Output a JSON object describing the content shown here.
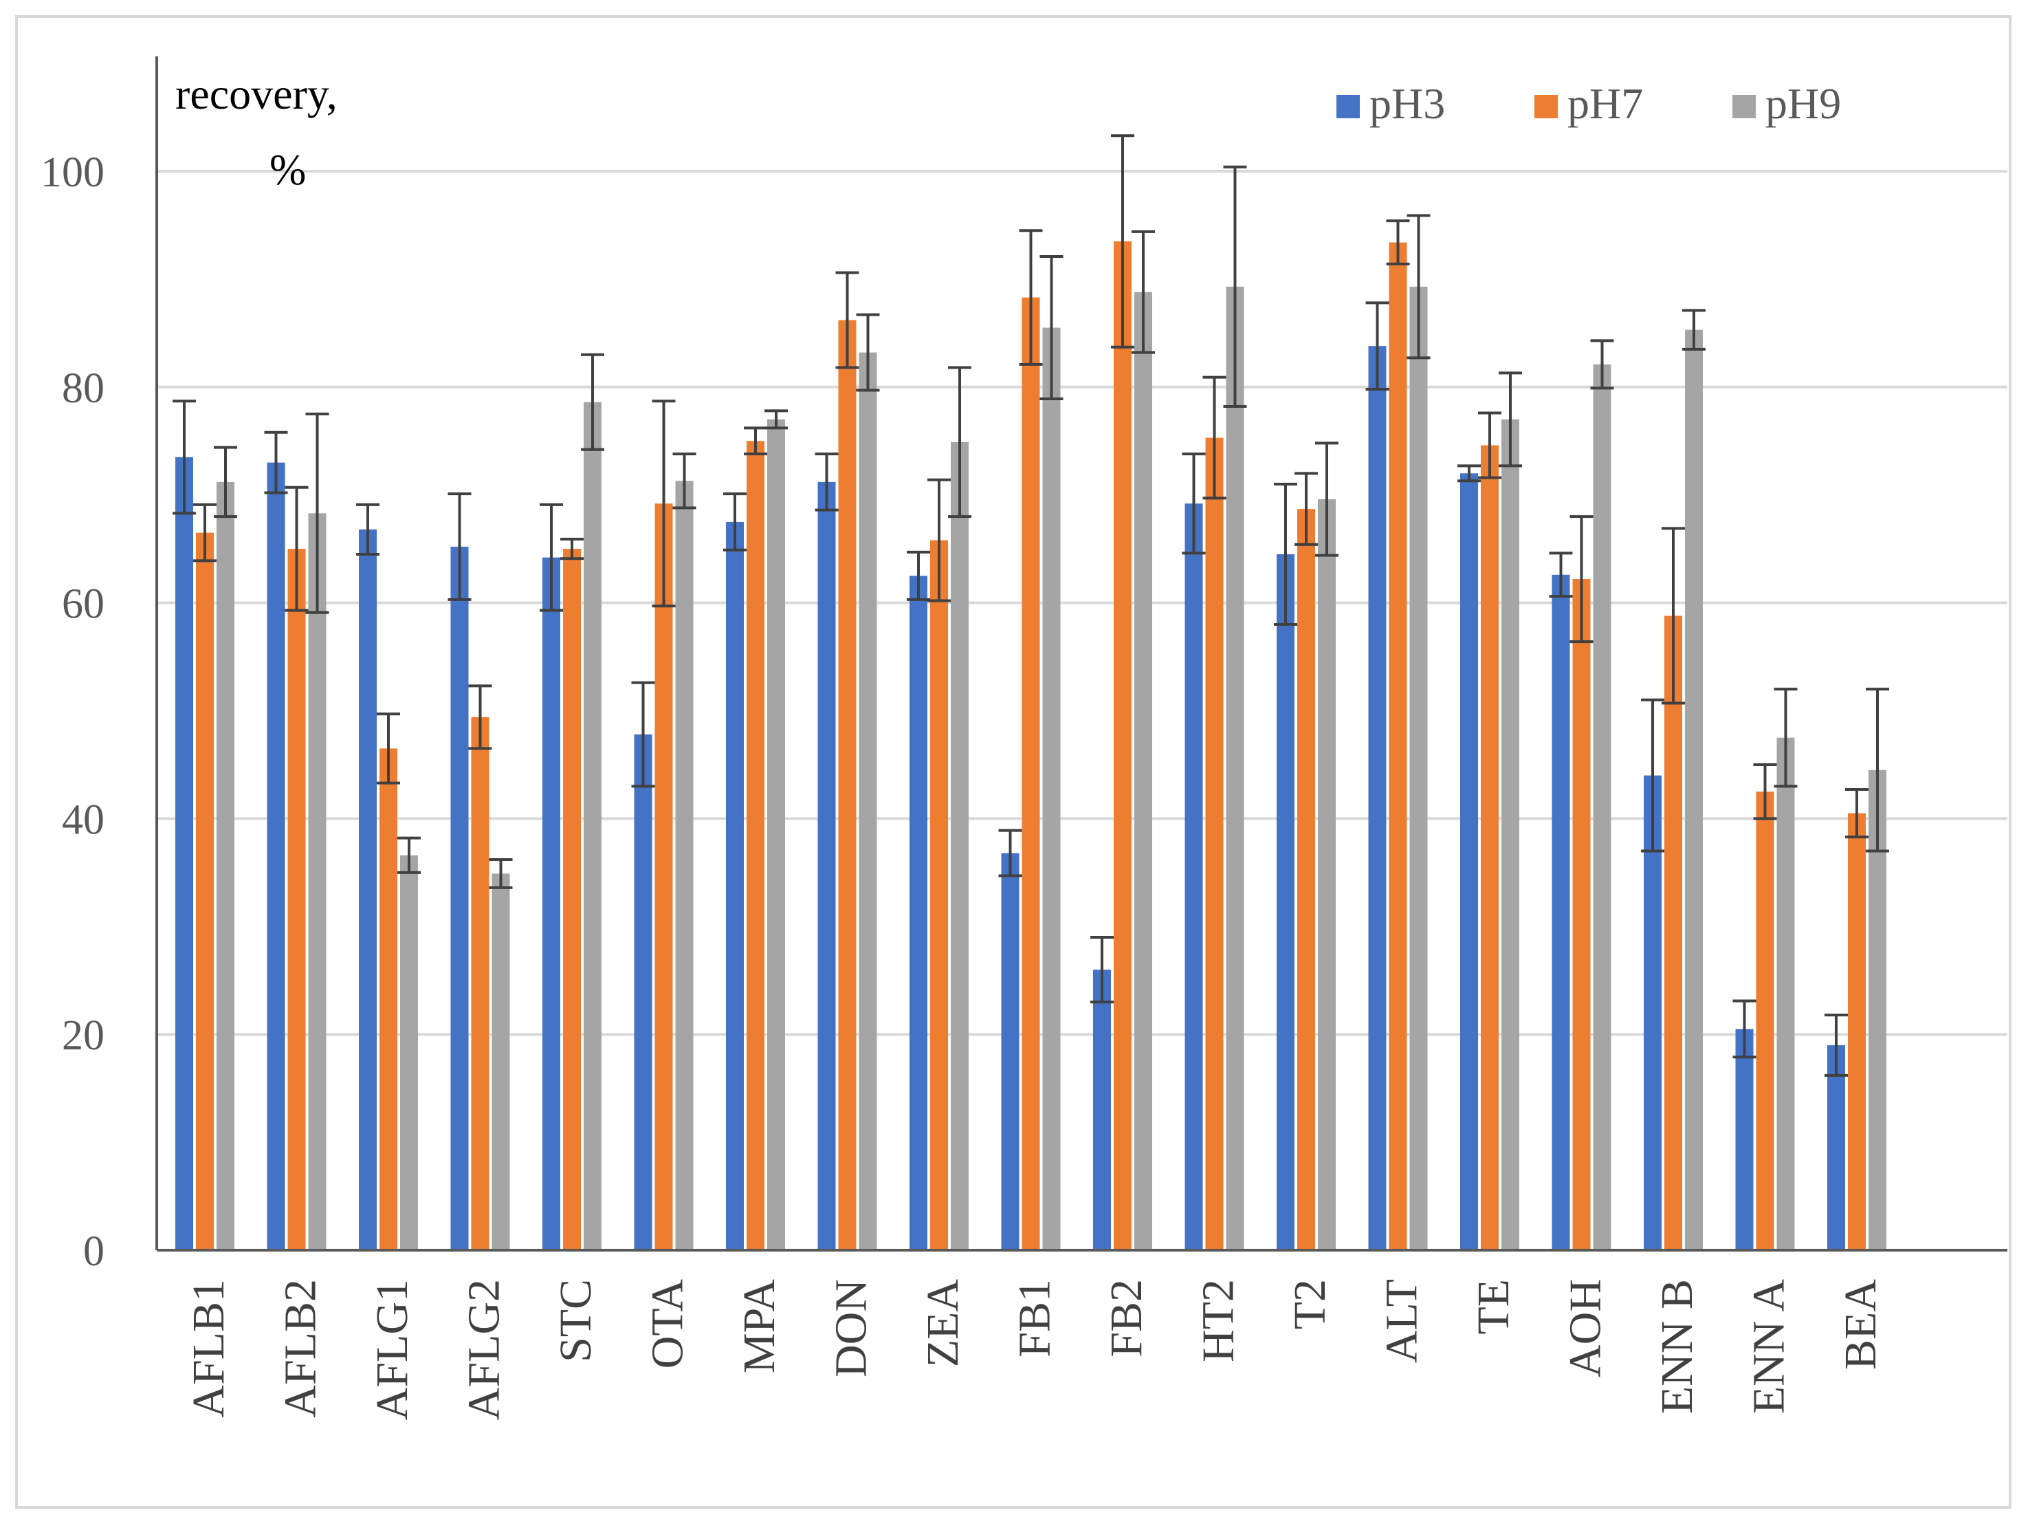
{
  "chart_data": {
    "type": "bar",
    "ylabel_line1": "recovery,",
    "ylabel_line2": "%",
    "ylim": [
      0,
      110
    ],
    "yticks": [
      0,
      20,
      40,
      60,
      80,
      100
    ],
    "grid": true,
    "legend_position": "top-right",
    "categories": [
      "AFLB1",
      "AFLB2",
      "AFLG1",
      "AFLG2",
      "STC",
      "OTA",
      "MPA",
      "DON",
      "ZEA",
      "FB1",
      "FB2",
      "HT2",
      "T2",
      "ALT",
      "TE",
      "AOH",
      "ENN B",
      "ENN A",
      "BEA"
    ],
    "series": [
      {
        "name": "pH3",
        "color": "#4472c4",
        "values": [
          73.5,
          73,
          66.8,
          65.2,
          64.2,
          47.8,
          67.5,
          71.2,
          62.5,
          36.8,
          26,
          69.2,
          64.5,
          83.8,
          72,
          62.6,
          44,
          20.5,
          19
        ],
        "errors": [
          5.2,
          2.8,
          2.3,
          4.9,
          4.9,
          4.8,
          2.6,
          2.6,
          2.2,
          2.1,
          3,
          4.6,
          6.5,
          4,
          0.7,
          2,
          7,
          2.6,
          2.8
        ]
      },
      {
        "name": "pH7",
        "color": "#ed7d31",
        "values": [
          66.5,
          65,
          46.5,
          49.4,
          65,
          69.2,
          75,
          86.2,
          65.8,
          88.3,
          93.5,
          75.3,
          68.7,
          93.4,
          74.6,
          62.2,
          58.8,
          42.5,
          40.5
        ],
        "errors": [
          2.6,
          5.7,
          3.2,
          2.9,
          0.9,
          9.5,
          1.2,
          4.4,
          5.6,
          6.2,
          9.8,
          5.6,
          3.3,
          2,
          3,
          5.8,
          8.1,
          2.5,
          2.2
        ]
      },
      {
        "name": "pH9",
        "color": "#a5a5a5",
        "values": [
          71.2,
          68.3,
          36.6,
          34.9,
          78.6,
          71.3,
          77,
          83.2,
          74.9,
          85.5,
          88.8,
          89.3,
          69.6,
          89.3,
          77,
          82.1,
          85.3,
          47.5,
          44.5
        ],
        "errors": [
          3.2,
          9.2,
          1.6,
          1.3,
          4.4,
          2.5,
          0.8,
          3.5,
          6.9,
          6.6,
          5.6,
          11.1,
          5.2,
          6.6,
          4.3,
          2.2,
          1.8,
          4.5,
          7.5
        ]
      }
    ]
  }
}
